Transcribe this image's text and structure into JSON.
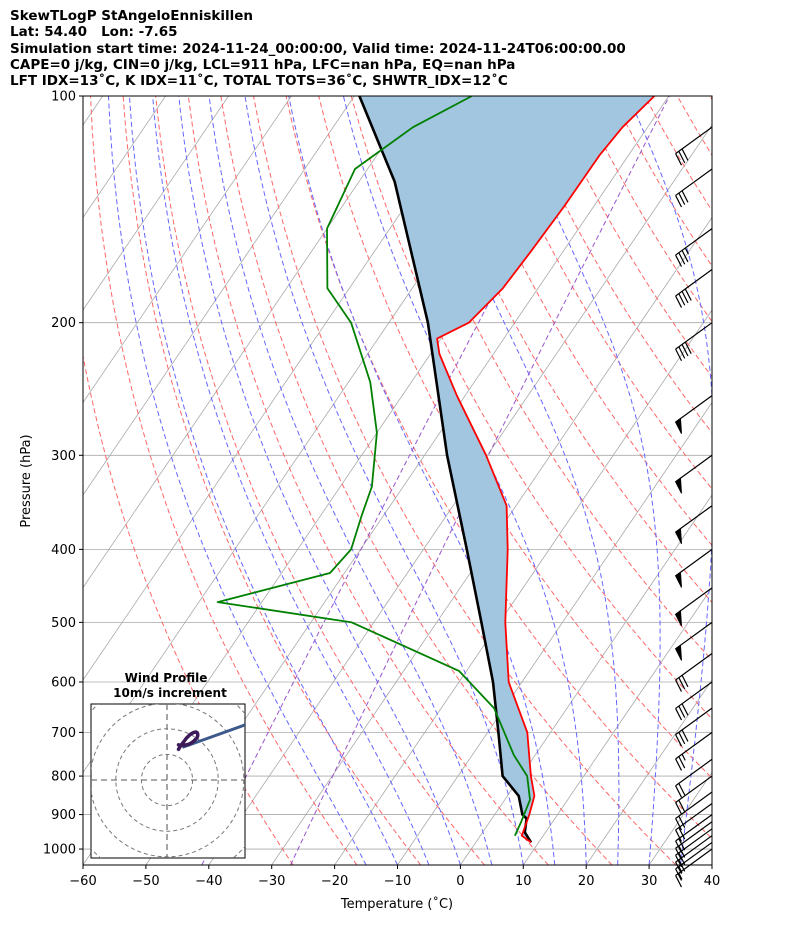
{
  "header": {
    "line1": "SkewTLogP StAngeloEnniskillen",
    "line2": "Lat: 54.40   Lon: -7.65",
    "line3": "Simulation start time: 2024-11-24_00:00:00, Valid time: 2024-11-24T06:00:00.00",
    "line4": "CAPE=0 j/kg, CIN=0 j/kg, LCL=911 hPa, LFC=nan hPa, EQ=nan hPa",
    "line5": "LFT IDX=13˚C, K IDX=11˚C, TOTAL TOTS=36˚C, SHWTR_IDX=12˚C"
  },
  "inset": {
    "title": "Wind Profile",
    "subtitle": "10m/s increment"
  },
  "colors": {
    "temperature": "#ff0000",
    "dewpoint": "#008000",
    "parcel": "#000000",
    "shade": "#a2c6e0",
    "dry_adiabat": "#ff6666",
    "moist_adiabat": "#6666ff",
    "mixing_ratio": "#9955cc",
    "isotherm": "#aaaaaa",
    "isobar": "#aaaaaa",
    "hodograph_line": "#3d5a8c",
    "hodograph_points": "#3d1a5a"
  },
  "chart_data": {
    "type": "line",
    "title": "",
    "xlabel": "Temperature (˚C)",
    "ylabel": "Pressure (hPa)",
    "xlim": [
      -60,
      40
    ],
    "ylim": [
      1050,
      100
    ],
    "y_scale": "log",
    "skew": true,
    "grid": true,
    "x_ticks": [
      -60,
      -50,
      -40,
      -30,
      -20,
      -10,
      0,
      10,
      20,
      30,
      40
    ],
    "y_ticks": [
      1000,
      900,
      800,
      700,
      600,
      500,
      400,
      300,
      200,
      100
    ],
    "series": [
      {
        "key": "temperature",
        "x": [
          8.8,
          6.6,
          5.5,
          4.3,
          1.6,
          -3.7,
          -12.1,
          -19.1,
          -26.6,
          -31.5,
          -40.2,
          -51.3,
          -58.6,
          -60.6,
          -57.3,
          -55.6,
          -55.1,
          -54.7,
          -54.6,
          -54.0,
          -52.3
        ],
        "y": [
          980,
          960,
          900,
          850,
          800,
          700,
          600,
          500,
          400,
          350,
          300,
          250,
          220,
          210,
          200,
          180,
          160,
          140,
          120,
          110,
          100
        ]
      },
      {
        "key": "dewpoint",
        "x": [
          5.5,
          5.0,
          4.0,
          1.0,
          -3.4,
          -11.6,
          -21.2,
          -43.5,
          -67.0,
          -52.3,
          -51.5,
          -53.5,
          -55.0,
          -60.0,
          -66.5,
          -76.0,
          -83.5,
          -90.0,
          -92.0,
          -87.3,
          -81.3
        ],
        "y": [
          960,
          920,
          860,
          800,
          750,
          650,
          580,
          500,
          470,
          430,
          400,
          360,
          330,
          280,
          240,
          200,
          180,
          150,
          125,
          110,
          100
        ]
      },
      {
        "key": "parcel",
        "x": [
          8.8,
          6.7,
          5.5,
          4.4,
          1.8,
          -2.9,
          -8.3,
          -14.6,
          -22.9,
          -33.1,
          -46.4,
          -63.8,
          -84.3,
          -99.2
        ],
        "y": [
          980,
          950,
          911,
          900,
          850,
          800,
          700,
          600,
          500,
          400,
          300,
          200,
          130,
          100
        ]
      }
    ],
    "wind_barbs": {
      "pressure": [
        1000,
        980,
        960,
        940,
        920,
        900,
        870,
        840,
        800,
        760,
        700,
        650,
        600,
        550,
        500,
        450,
        400,
        350,
        300,
        250,
        200,
        170,
        150,
        125,
        110
      ],
      "barbs": [
        "full1-half1",
        "full1-half1",
        "full2",
        "full2",
        "full2",
        "full2",
        "full2",
        "full2",
        "full2",
        "full2",
        "full2-half1",
        "full3",
        "full3",
        "full3",
        "pennant1",
        "pennant1",
        "pennant1",
        "pennant1",
        "pennant1",
        "pennant1",
        "full4",
        "full4",
        "full3-half1",
        "full3",
        "full3"
      ]
    },
    "hodograph": {
      "title": "Wind Profile",
      "increment_ms": 10,
      "u": [
        9,
        10.5,
        12,
        13.5,
        15,
        16.5,
        18,
        19.5,
        21,
        22.5,
        23.5,
        24,
        24,
        23.5,
        22.5,
        21,
        19,
        17,
        15,
        13,
        11,
        9
      ],
      "v": [
        24,
        26.5,
        28.5,
        30.5,
        32.5,
        34,
        35.5,
        36.5,
        37.2,
        37.5,
        37,
        36,
        34.5,
        33,
        32,
        30.5,
        29,
        28,
        27.5,
        27,
        27,
        27.5
      ]
    }
  }
}
